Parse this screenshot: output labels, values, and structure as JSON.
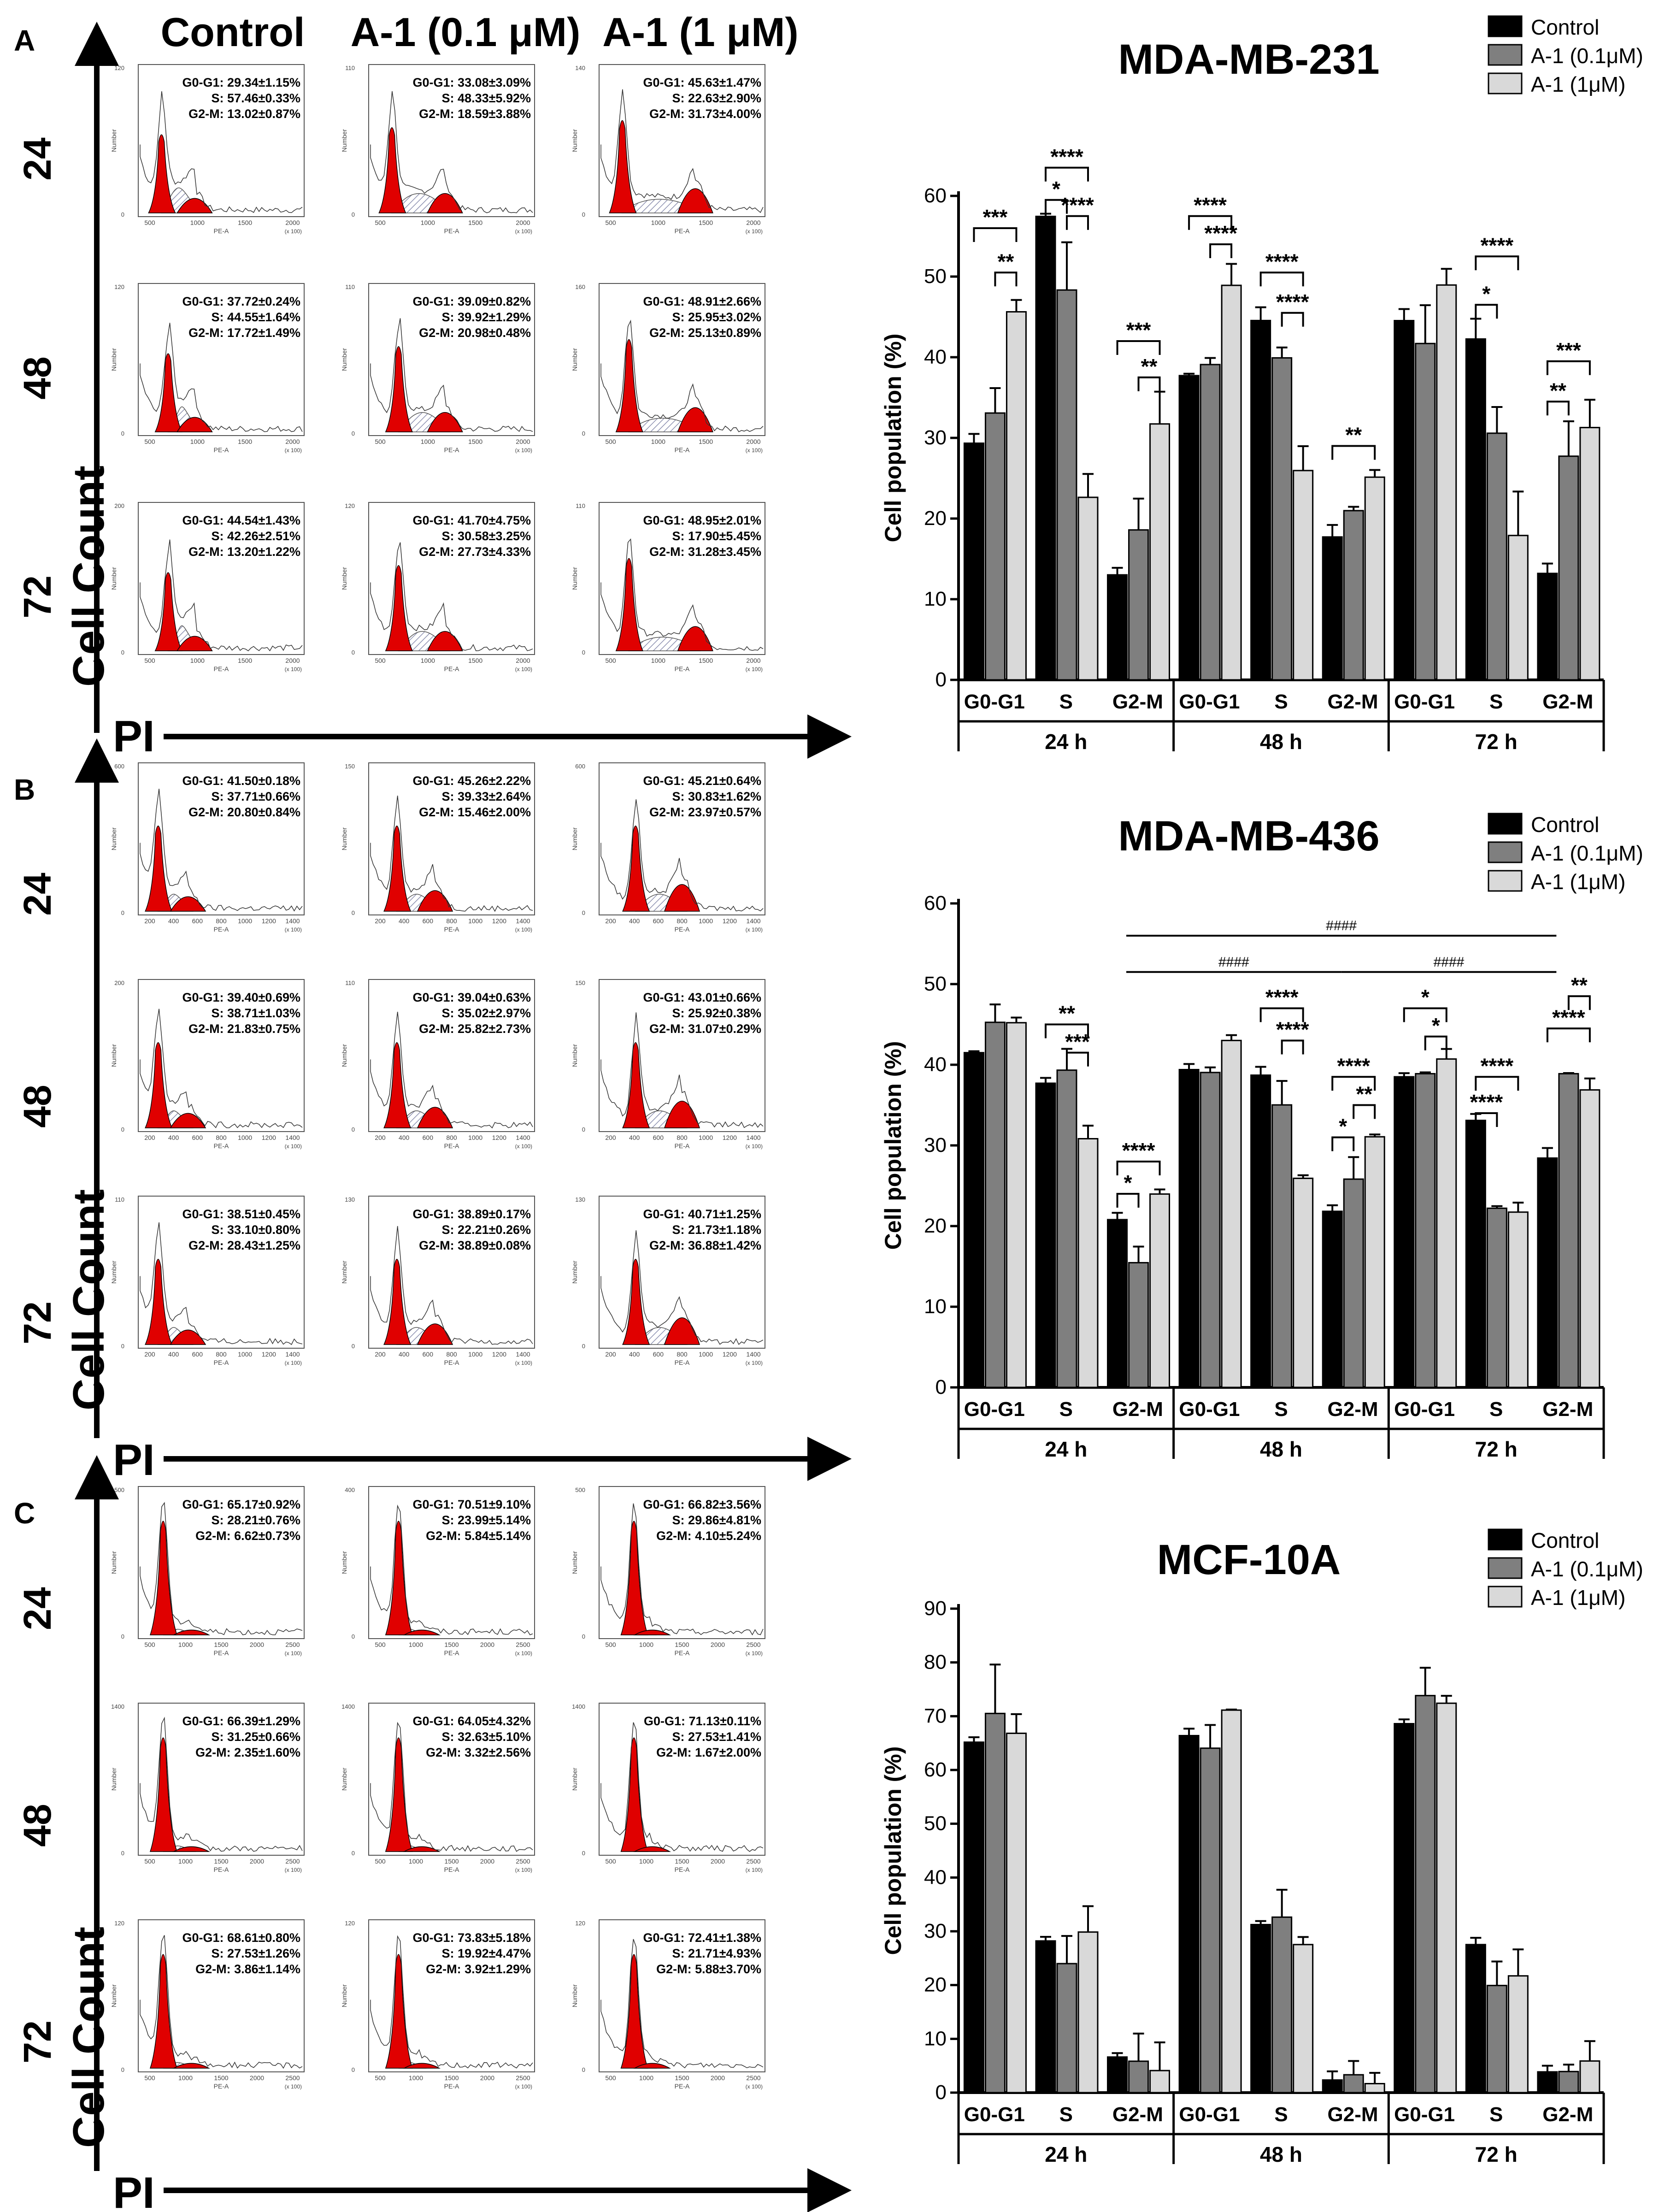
{
  "figure": {
    "condition_labels": [
      "Control",
      "A-1 (0.1 μM)",
      "A-1 (1 μM)"
    ],
    "time_labels": [
      "24",
      "48",
      "72"
    ],
    "y_axis_label": "Cell Count",
    "x_axis_label": "PI",
    "hist_x_label": "PE-A",
    "hist_y_label": "Number",
    "hist_scale_note": "(x 100)"
  },
  "panels": [
    {
      "letter": "A",
      "cell_line": "MDA-MB-231",
      "stats": [
        [
          {
            "g0g1": "G0-G1: 29.34±1.15%",
            "s": "S: 57.46±0.33%",
            "g2m": "G2-M: 13.02±0.87%"
          },
          {
            "g0g1": "G0-G1: 33.08±3.09%",
            "s": "S: 48.33±5.92%",
            "g2m": "G2-M: 18.59±3.88%"
          },
          {
            "g0g1": "G0-G1: 45.63±1.47%",
            "s": "S: 22.63±2.90%",
            "g2m": "G2-M: 31.73±4.00%"
          }
        ],
        [
          {
            "g0g1": "G0-G1: 37.72±0.24%",
            "s": "S: 44.55±1.64%",
            "g2m": "G2-M: 17.72±1.49%"
          },
          {
            "g0g1": "G0-G1: 39.09±0.82%",
            "s": "S: 39.92±1.29%",
            "g2m": "G2-M: 20.98±0.48%"
          },
          {
            "g0g1": "G0-G1: 48.91±2.66%",
            "s": "S: 25.95±3.02%",
            "g2m": "G2-M: 25.13±0.89%"
          }
        ],
        [
          {
            "g0g1": "G0-G1: 44.54±1.43%",
            "s": "S: 42.26±2.51%",
            "g2m": "G2-M: 13.20±1.22%"
          },
          {
            "g0g1": "G0-G1: 41.70±4.75%",
            "s": "S: 30.58±3.25%",
            "g2m": "G2-M: 27.73±4.33%"
          },
          {
            "g0g1": "G0-G1: 48.95±2.01%",
            "s": "S: 17.90±5.45%",
            "g2m": "G2-M: 31.28±3.45%"
          }
        ]
      ],
      "hist_ticks": [
        "500",
        "1000",
        "1500",
        "2000"
      ],
      "hist_ymax": [
        "120",
        "110",
        "140",
        "120",
        "110",
        "160",
        "200",
        "120",
        "110"
      ]
    },
    {
      "letter": "B",
      "cell_line": "MDA-MB-436",
      "stats": [
        [
          {
            "g0g1": "G0-G1: 41.50±0.18%",
            "s": "S: 37.71±0.66%",
            "g2m": "G2-M: 20.80±0.84%"
          },
          {
            "g0g1": "G0-G1: 45.26±2.22%",
            "s": "S: 39.33±2.64%",
            "g2m": "G2-M: 15.46±2.00%"
          },
          {
            "g0g1": "G0-G1: 45.21±0.64%",
            "s": "S: 30.83±1.62%",
            "g2m": "G2-M: 23.97±0.57%"
          }
        ],
        [
          {
            "g0g1": "G0-G1: 39.40±0.69%",
            "s": "S: 38.71±1.03%",
            "g2m": "G2-M: 21.83±0.75%"
          },
          {
            "g0g1": "G0-G1: 39.04±0.63%",
            "s": "S: 35.02±2.97%",
            "g2m": "G2-M: 25.82±2.73%"
          },
          {
            "g0g1": "G0-G1: 43.01±0.66%",
            "s": "S: 25.92±0.38%",
            "g2m": "G2-M: 31.07±0.29%"
          }
        ],
        [
          {
            "g0g1": "G0-G1: 38.51±0.45%",
            "s": "S: 33.10±0.80%",
            "g2m": "G2-M: 28.43±1.25%"
          },
          {
            "g0g1": "G0-G1: 38.89±0.17%",
            "s": "S: 22.21±0.26%",
            "g2m": "G2-M: 38.89±0.08%"
          },
          {
            "g0g1": "G0-G1: 40.71±1.25%",
            "s": "S: 21.73±1.18%",
            "g2m": "G2-M: 36.88±1.42%"
          }
        ]
      ],
      "hist_ticks": [
        "200",
        "400",
        "600",
        "800",
        "1000",
        "1200",
        "1400"
      ],
      "hist_ymax": [
        "600",
        "150",
        "600",
        "200",
        "110",
        "150",
        "110",
        "130",
        "130"
      ]
    },
    {
      "letter": "C",
      "cell_line": "MCF-10A",
      "stats": [
        [
          {
            "g0g1": "G0-G1: 65.17±0.92%",
            "s": "S: 28.21±0.76%",
            "g2m": "G2-M: 6.62±0.73%"
          },
          {
            "g0g1": "G0-G1: 70.51±9.10%",
            "s": "S: 23.99±5.14%",
            "g2m": "G2-M: 5.84±5.14%"
          },
          {
            "g0g1": "G0-G1: 66.82±3.56%",
            "s": "S: 29.86±4.81%",
            "g2m": "G2-M: 4.10±5.24%"
          }
        ],
        [
          {
            "g0g1": "G0-G1: 66.39±1.29%",
            "s": "S: 31.25±0.66%",
            "g2m": "G2-M: 2.35±1.60%"
          },
          {
            "g0g1": "G0-G1: 64.05±4.32%",
            "s": "S: 32.63±5.10%",
            "g2m": "G2-M: 3.32±2.56%"
          },
          {
            "g0g1": "G0-G1: 71.13±0.11%",
            "s": "S: 27.53±1.41%",
            "g2m": "G2-M: 1.67±2.00%"
          }
        ],
        [
          {
            "g0g1": "G0-G1: 68.61±0.80%",
            "s": "S: 27.53±1.26%",
            "g2m": "G2-M: 3.86±1.14%"
          },
          {
            "g0g1": "G0-G1: 73.83±5.18%",
            "s": "S: 19.92±4.47%",
            "g2m": "G2-M: 3.92±1.29%"
          },
          {
            "g0g1": "G0-G1: 72.41±1.38%",
            "s": "S: 21.71±4.93%",
            "g2m": "G2-M: 5.88±3.70%"
          }
        ]
      ],
      "hist_ticks": [
        "500",
        "1000",
        "1500",
        "2000",
        "2500"
      ],
      "hist_ymax": [
        "500",
        "400",
        "500",
        "1400",
        "1400",
        "1400",
        "120",
        "120",
        "120"
      ]
    }
  ],
  "chart_data": [
    {
      "type": "bar",
      "title": "MDA-MB-231",
      "ylabel": "Cell population (%)",
      "ylim": [
        0,
        60
      ],
      "yticks": [
        0,
        10,
        20,
        30,
        40,
        50,
        60
      ],
      "colors": [
        "#000000",
        "#7f7f7f",
        "#d9d9d9"
      ],
      "legend": [
        "Control",
        "A-1 (0.1μM)",
        "A-1 (1μM)"
      ],
      "legend_position": "top-right",
      "groups": [
        "24 h",
        "48 h",
        "72 h"
      ],
      "categories": [
        "G0-G1",
        "S",
        "G2-M"
      ],
      "series": [
        {
          "name": "Control",
          "values": [
            [
              29.34,
              57.46,
              13.02
            ],
            [
              37.72,
              44.55,
              17.72
            ],
            [
              44.54,
              42.26,
              13.2
            ]
          ],
          "errors": [
            [
              1.15,
              0.33,
              0.87
            ],
            [
              0.24,
              1.64,
              1.49
            ],
            [
              1.43,
              2.51,
              1.22
            ]
          ]
        },
        {
          "name": "A-1 (0.1μM)",
          "values": [
            [
              33.08,
              48.33,
              18.59
            ],
            [
              39.09,
              39.92,
              20.98
            ],
            [
              41.7,
              30.58,
              27.73
            ]
          ],
          "errors": [
            [
              3.09,
              5.92,
              3.88
            ],
            [
              0.82,
              1.29,
              0.48
            ],
            [
              4.75,
              3.25,
              4.33
            ]
          ]
        },
        {
          "name": "A-1 (1μM)",
          "values": [
            [
              45.63,
              22.63,
              31.73
            ],
            [
              48.91,
              25.95,
              25.13
            ],
            [
              48.95,
              17.9,
              31.28
            ]
          ],
          "errors": [
            [
              1.47,
              2.9,
              4.0
            ],
            [
              2.66,
              3.02,
              0.89
            ],
            [
              2.01,
              5.45,
              3.45
            ]
          ]
        }
      ],
      "significance": [
        {
          "group": 0,
          "cat": 0,
          "from": 0,
          "to": 2,
          "label": "***",
          "level": 56
        },
        {
          "group": 0,
          "cat": 0,
          "from": 1,
          "to": 2,
          "label": "**",
          "level": 50.5
        },
        {
          "group": 0,
          "cat": 1,
          "from": 0,
          "to": 2,
          "label": "****",
          "level": 63.5
        },
        {
          "group": 0,
          "cat": 1,
          "from": 0,
          "to": 1,
          "label": "*",
          "level": 59.5
        },
        {
          "group": 0,
          "cat": 1,
          "from": 1,
          "to": 2,
          "label": "****",
          "level": 57.5
        },
        {
          "group": 0,
          "cat": 2,
          "from": 0,
          "to": 2,
          "label": "***",
          "level": 42
        },
        {
          "group": 0,
          "cat": 2,
          "from": 1,
          "to": 2,
          "label": "**",
          "level": 37.5
        },
        {
          "group": 1,
          "cat": 0,
          "from": 0,
          "to": 2,
          "label": "****",
          "level": 57.5
        },
        {
          "group": 1,
          "cat": 0,
          "from": 1,
          "to": 2,
          "label": "****",
          "level": 54
        },
        {
          "group": 1,
          "cat": 1,
          "from": 0,
          "to": 2,
          "label": "****",
          "level": 50.5
        },
        {
          "group": 1,
          "cat": 1,
          "from": 1,
          "to": 2,
          "label": "****",
          "level": 45.5
        },
        {
          "group": 1,
          "cat": 2,
          "from": 0,
          "to": 2,
          "label": "**",
          "level": 29
        },
        {
          "group": 2,
          "cat": 1,
          "from": 0,
          "to": 2,
          "label": "****",
          "level": 52.5
        },
        {
          "group": 2,
          "cat": 1,
          "from": 0,
          "to": 1,
          "label": "*",
          "level": 46.5
        },
        {
          "group": 2,
          "cat": 2,
          "from": 0,
          "to": 2,
          "label": "***",
          "level": 39.5
        },
        {
          "group": 2,
          "cat": 2,
          "from": 0,
          "to": 1,
          "label": "**",
          "level": 34.5
        }
      ]
    },
    {
      "type": "bar",
      "title": "MDA-MB-436",
      "ylabel": "Cell population (%)",
      "ylim": [
        0,
        60
      ],
      "yticks": [
        0,
        10,
        20,
        30,
        40,
        50,
        60
      ],
      "colors": [
        "#000000",
        "#7f7f7f",
        "#d9d9d9"
      ],
      "legend": [
        "Control",
        "A-1 (0.1μM)",
        "A-1 (1μM)"
      ],
      "legend_position": "top-right",
      "groups": [
        "24 h",
        "48 h",
        "72 h"
      ],
      "categories": [
        "G0-G1",
        "S",
        "G2-M"
      ],
      "series": [
        {
          "name": "Control",
          "values": [
            [
              41.5,
              37.71,
              20.8
            ],
            [
              39.4,
              38.71,
              21.83
            ],
            [
              38.51,
              33.1,
              28.43
            ]
          ],
          "errors": [
            [
              0.18,
              0.66,
              0.84
            ],
            [
              0.69,
              1.03,
              0.75
            ],
            [
              0.45,
              0.8,
              1.25
            ]
          ]
        },
        {
          "name": "A-1 (0.1μM)",
          "values": [
            [
              45.26,
              39.33,
              15.46
            ],
            [
              39.04,
              35.02,
              25.82
            ],
            [
              38.89,
              22.21,
              38.89
            ]
          ],
          "errors": [
            [
              2.22,
              2.64,
              2.0
            ],
            [
              0.63,
              2.97,
              2.73
            ],
            [
              0.17,
              0.26,
              0.08
            ]
          ]
        },
        {
          "name": "A-1 (1μM)",
          "values": [
            [
              45.21,
              30.83,
              23.97
            ],
            [
              43.01,
              25.92,
              31.07
            ],
            [
              40.71,
              21.73,
              36.88
            ]
          ],
          "errors": [
            [
              0.64,
              1.62,
              0.57
            ],
            [
              0.66,
              0.38,
              0.29
            ],
            [
              1.25,
              1.18,
              1.42
            ]
          ]
        }
      ],
      "significance": [
        {
          "group": 0,
          "cat": 1,
          "from": 0,
          "to": 2,
          "label": "**",
          "level": 45
        },
        {
          "group": 0,
          "cat": 1,
          "from": 1,
          "to": 2,
          "label": "***",
          "level": 41.5
        },
        {
          "group": 0,
          "cat": 2,
          "from": 0,
          "to": 2,
          "label": "****",
          "level": 28
        },
        {
          "group": 0,
          "cat": 2,
          "from": 0,
          "to": 1,
          "label": "*",
          "level": 24
        },
        {
          "group": 1,
          "cat": 1,
          "from": 0,
          "to": 2,
          "label": "****",
          "level": 47
        },
        {
          "group": 1,
          "cat": 1,
          "from": 1,
          "to": 2,
          "label": "****",
          "level": 43
        },
        {
          "group": 1,
          "cat": 2,
          "from": 0,
          "to": 2,
          "label": "****",
          "level": 38.5
        },
        {
          "group": 1,
          "cat": 2,
          "from": 1,
          "to": 2,
          "label": "**",
          "level": 35
        },
        {
          "group": 1,
          "cat": 2,
          "from": 0,
          "to": 1,
          "label": "*",
          "level": 31
        },
        {
          "group": 2,
          "cat": 0,
          "from": 0,
          "to": 2,
          "label": "*",
          "level": 47
        },
        {
          "group": 2,
          "cat": 0,
          "from": 1,
          "to": 2,
          "label": "*",
          "level": 43.5
        },
        {
          "group": 2,
          "cat": 1,
          "from": 0,
          "to": 2,
          "label": "****",
          "level": 38.5
        },
        {
          "group": 2,
          "cat": 1,
          "from": 0,
          "to": 1,
          "label": "****",
          "level": 34
        },
        {
          "group": 2,
          "cat": 2,
          "from": 1,
          "to": 2,
          "label": "**",
          "level": 48.5
        },
        {
          "group": 2,
          "cat": 2,
          "from": 0,
          "to": 2,
          "label": "****",
          "level": 44.5
        }
      ],
      "hash_brackets": [
        {
          "label": "####",
          "from_group": 0,
          "to_group": 2,
          "level": 56
        },
        {
          "label": "####",
          "from_group": 0,
          "to_group": 1,
          "level": 51.5
        },
        {
          "label": "####",
          "from_group": 1,
          "to_group": 2,
          "level": 51.5
        }
      ]
    },
    {
      "type": "bar",
      "title": "MCF-10A",
      "ylabel": "Cell population (%)",
      "ylim": [
        0,
        90
      ],
      "yticks": [
        0,
        10,
        20,
        30,
        40,
        50,
        60,
        70,
        80,
        90
      ],
      "colors": [
        "#000000",
        "#7f7f7f",
        "#d9d9d9"
      ],
      "legend": [
        "Control",
        "A-1 (0.1μM)",
        "A-1 (1μM)"
      ],
      "legend_position": "top-right",
      "groups": [
        "24 h",
        "48 h",
        "72 h"
      ],
      "categories": [
        "G0-G1",
        "S",
        "G2-M"
      ],
      "series": [
        {
          "name": "Control",
          "values": [
            [
              65.17,
              28.21,
              6.62
            ],
            [
              66.39,
              31.25,
              2.35
            ],
            [
              68.61,
              27.53,
              3.86
            ]
          ],
          "errors": [
            [
              0.92,
              0.76,
              0.73
            ],
            [
              1.29,
              0.66,
              1.6
            ],
            [
              0.8,
              1.26,
              1.14
            ]
          ]
        },
        {
          "name": "A-1 (0.1μM)",
          "values": [
            [
              70.51,
              23.99,
              5.84
            ],
            [
              64.05,
              32.63,
              3.32
            ],
            [
              73.83,
              19.92,
              3.92
            ]
          ],
          "errors": [
            [
              9.1,
              5.14,
              5.14
            ],
            [
              4.32,
              5.1,
              2.56
            ],
            [
              5.18,
              4.47,
              1.29
            ]
          ]
        },
        {
          "name": "A-1 (1μM)",
          "values": [
            [
              66.82,
              29.86,
              4.1
            ],
            [
              71.13,
              27.53,
              1.67
            ],
            [
              72.41,
              21.71,
              5.88
            ]
          ],
          "errors": [
            [
              3.56,
              4.81,
              5.24
            ],
            [
              0.11,
              1.41,
              2.0
            ],
            [
              1.38,
              4.93,
              3.7
            ]
          ]
        }
      ],
      "significance": []
    }
  ]
}
